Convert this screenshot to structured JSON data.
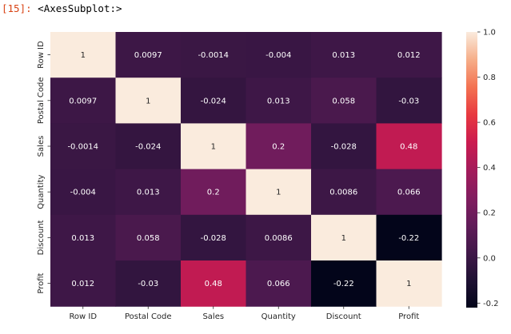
{
  "cell": {
    "prompt_number": "[15]:",
    "output_text": "<AxesSubplot:>"
  },
  "chart_data": {
    "type": "heatmap",
    "title": "",
    "xlabel": "",
    "ylabel": "",
    "annotated": true,
    "x_labels": [
      "Row ID",
      "Postal Code",
      "Sales",
      "Quantity",
      "Discount",
      "Profit"
    ],
    "y_labels": [
      "Row ID",
      "Postal Code",
      "Sales",
      "Quantity",
      "Discount",
      "Profit"
    ],
    "values": [
      [
        1,
        0.0097,
        -0.0014,
        -0.004,
        0.013,
        0.012
      ],
      [
        0.0097,
        1,
        -0.024,
        0.013,
        0.058,
        -0.03
      ],
      [
        -0.0014,
        -0.024,
        1,
        0.2,
        -0.028,
        0.48
      ],
      [
        -0.004,
        0.013,
        0.2,
        1,
        0.0086,
        0.066
      ],
      [
        0.013,
        0.058,
        -0.028,
        0.0086,
        1,
        -0.22
      ],
      [
        0.012,
        -0.03,
        0.48,
        0.066,
        -0.22,
        1
      ]
    ],
    "cell_labels": [
      [
        "1",
        "0.0097",
        "-0.0014",
        "-0.004",
        "0.013",
        "0.012"
      ],
      [
        "0.0097",
        "1",
        "-0.024",
        "0.013",
        "0.058",
        "-0.03"
      ],
      [
        "-0.0014",
        "-0.024",
        "1",
        "0.2",
        "-0.028",
        "0.48"
      ],
      [
        "-0.004",
        "0.013",
        "0.2",
        "1",
        "0.0086",
        "0.066"
      ],
      [
        "0.013",
        "0.058",
        "-0.028",
        "0.0086",
        "1",
        "-0.22"
      ],
      [
        "0.012",
        "-0.03",
        "0.48",
        "0.066",
        "-0.22",
        "1"
      ]
    ],
    "colormap": "rocket",
    "colorbar": {
      "range": [
        -0.22,
        1.0
      ],
      "ticks": [
        1.0,
        0.8,
        0.6,
        0.4,
        0.2,
        0.0,
        -0.2
      ],
      "tick_labels": [
        "1.0",
        "0.8",
        "0.6",
        "0.4",
        "0.2",
        "0.0",
        "-0.2"
      ]
    }
  }
}
